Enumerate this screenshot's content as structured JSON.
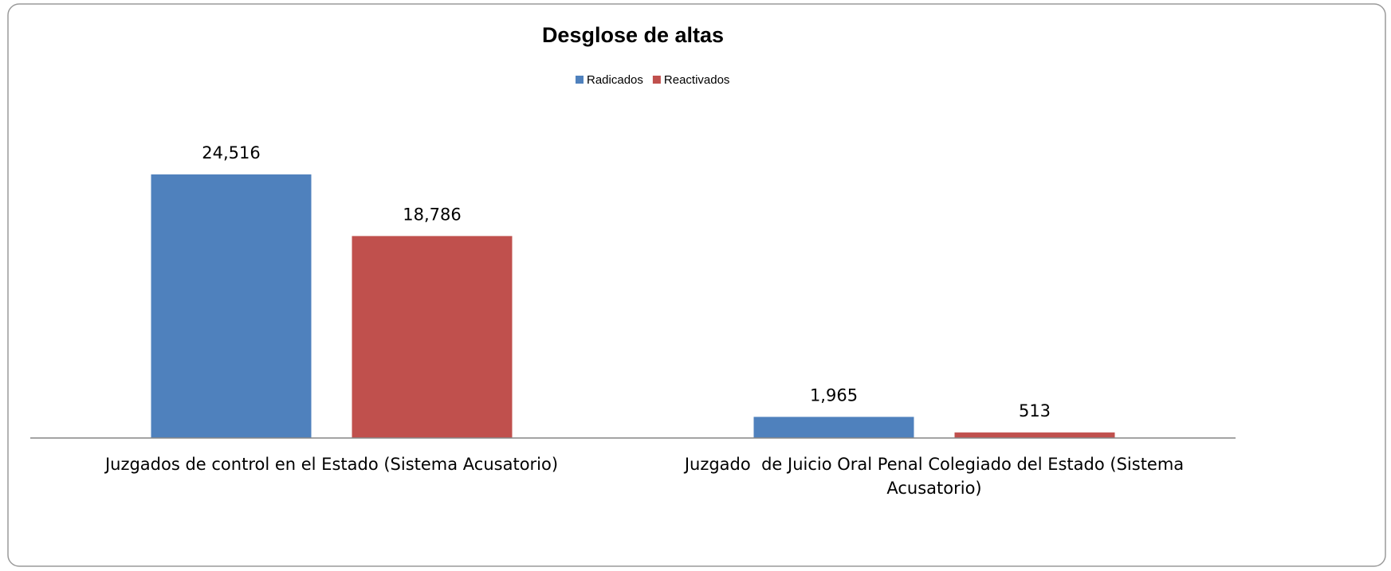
{
  "chart_data": {
    "type": "bar",
    "title": "Desglose de altas",
    "categories": [
      "Juzgados de control en el Estado (Sistema Acusatorio)",
      "Juzgado  de Juicio Oral Penal Colegiado del Estado (Sistema Acusatorio)"
    ],
    "series": [
      {
        "name": "Radicados",
        "color": "#4f81bd",
        "values": [
          24516,
          1965
        ],
        "value_labels": [
          "24,516",
          "1,965"
        ]
      },
      {
        "name": "Reactivados",
        "color": "#c0504d",
        "values": [
          18786,
          513
        ],
        "value_labels": [
          "18,786",
          "513"
        ]
      }
    ],
    "ylim": [
      0,
      30000
    ],
    "legend": "top"
  }
}
